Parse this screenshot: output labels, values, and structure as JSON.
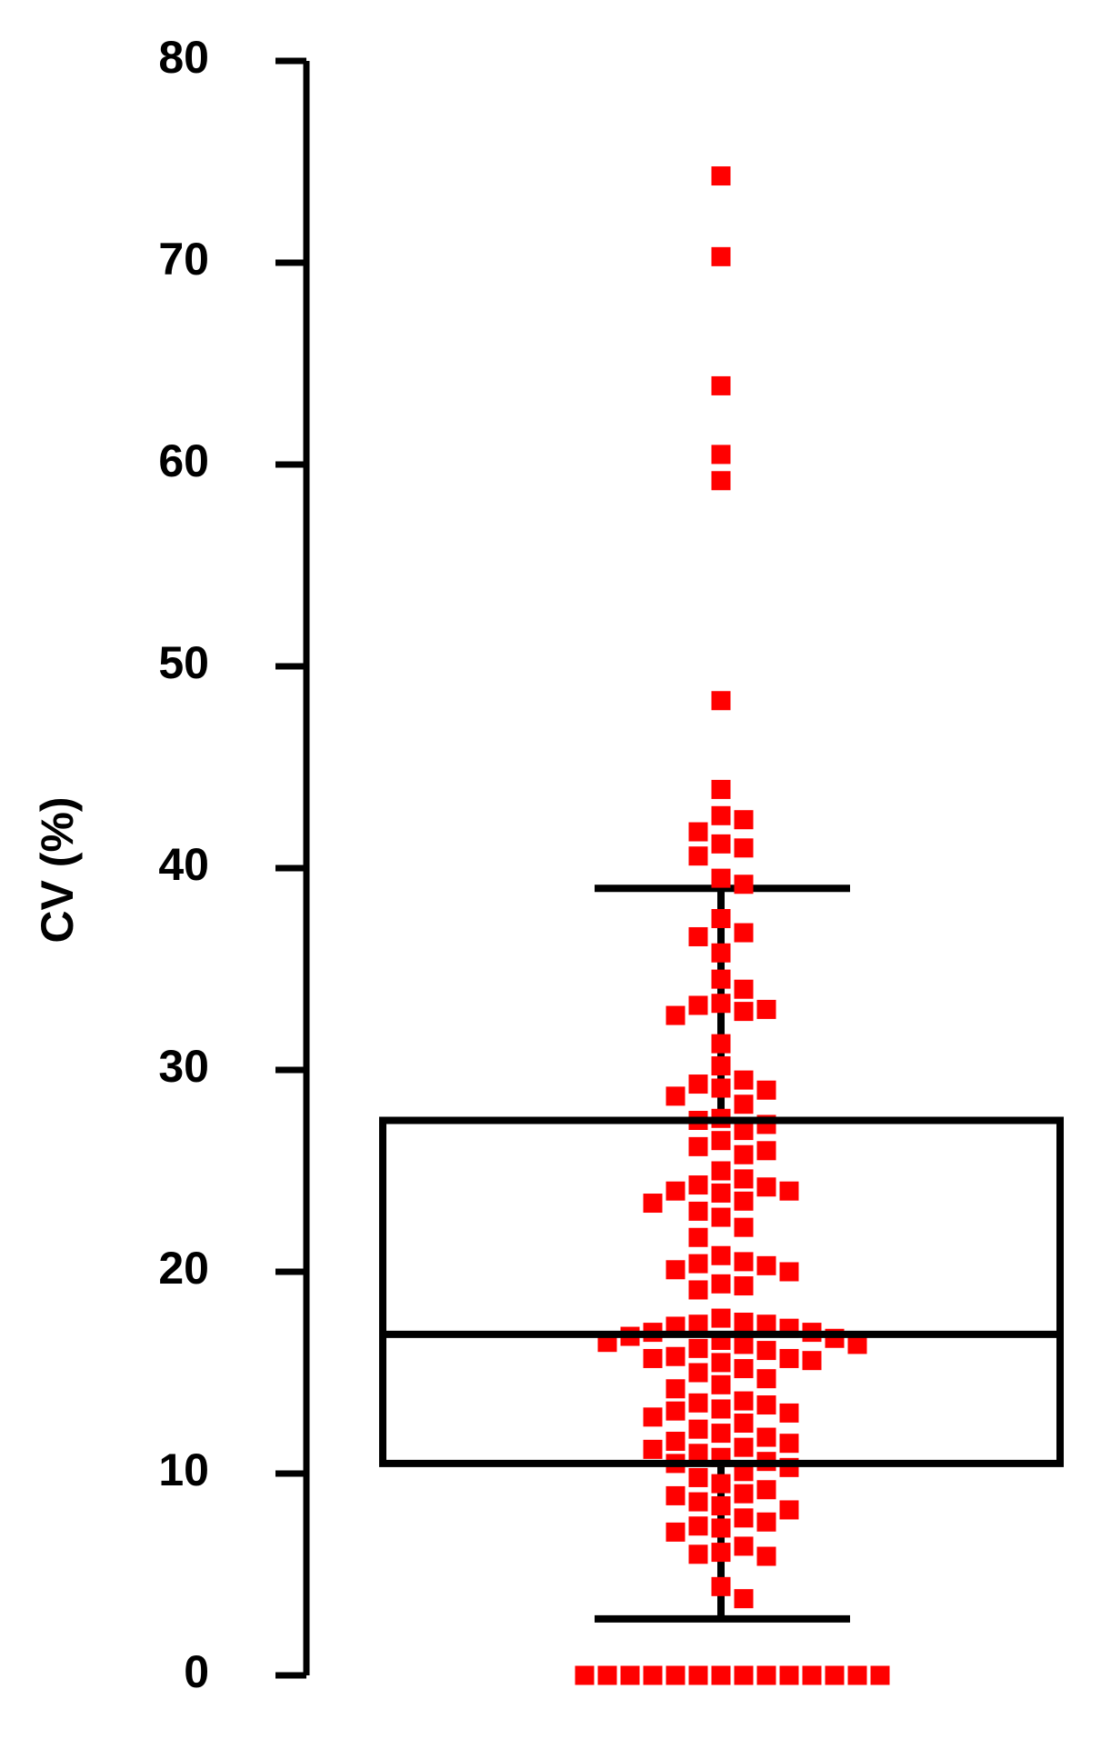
{
  "chart_data": {
    "type": "box",
    "ylabel": "CV (%)",
    "ylim": [
      0,
      80
    ],
    "yticks": [
      0,
      10,
      20,
      30,
      40,
      50,
      60,
      70,
      80
    ],
    "box": {
      "whislo": 2.8,
      "q1": 10.5,
      "med": 16.9,
      "q3": 27.5,
      "whishi": 39
    },
    "point_color": "#ff0000",
    "values": [
      74.3,
      70.3,
      63.9,
      60.5,
      59.2,
      48.3,
      43.9,
      42.6,
      42.4,
      41.8,
      41.2,
      41.0,
      40.6,
      39.5,
      39.2,
      37.5,
      36.8,
      36.6,
      35.8,
      34.5,
      34.0,
      33.3,
      33.2,
      33.0,
      32.9,
      32.7,
      31.3,
      30.2,
      29.5,
      29.3,
      29.1,
      29.0,
      28.7,
      28.3,
      27.6,
      27.5,
      27.3,
      27.0,
      26.5,
      26.2,
      26.0,
      25.8,
      25.0,
      24.6,
      24.3,
      24.2,
      24.0,
      24.0,
      23.9,
      23.5,
      23.4,
      23.0,
      22.7,
      22.2,
      21.7,
      20.8,
      20.5,
      20.4,
      20.3,
      20.1,
      20.0,
      19.4,
      19.3,
      19.1,
      17.7,
      17.5,
      17.4,
      17.4,
      17.3,
      17.2,
      17.0,
      17.0,
      16.8,
      16.7,
      16.6,
      16.5,
      16.4,
      16.4,
      16.2,
      16.1,
      15.8,
      15.7,
      15.7,
      15.6,
      15.5,
      15.2,
      15.0,
      14.7,
      14.4,
      14.2,
      13.6,
      13.5,
      13.4,
      13.2,
      13.1,
      13.0,
      12.8,
      12.5,
      12.2,
      12.0,
      11.8,
      11.6,
      11.5,
      11.3,
      11.2,
      11.0,
      10.8,
      10.6,
      10.5,
      10.3,
      10.1,
      9.8,
      9.5,
      9.2,
      9.0,
      8.9,
      8.6,
      8.4,
      8.2,
      7.8,
      7.6,
      7.4,
      7.3,
      7.1,
      6.4,
      6.1,
      6.0,
      5.9,
      4.4,
      3.8,
      0,
      0,
      0,
      0,
      0,
      0,
      0,
      0,
      0,
      0,
      0,
      0,
      0,
      0
    ]
  }
}
